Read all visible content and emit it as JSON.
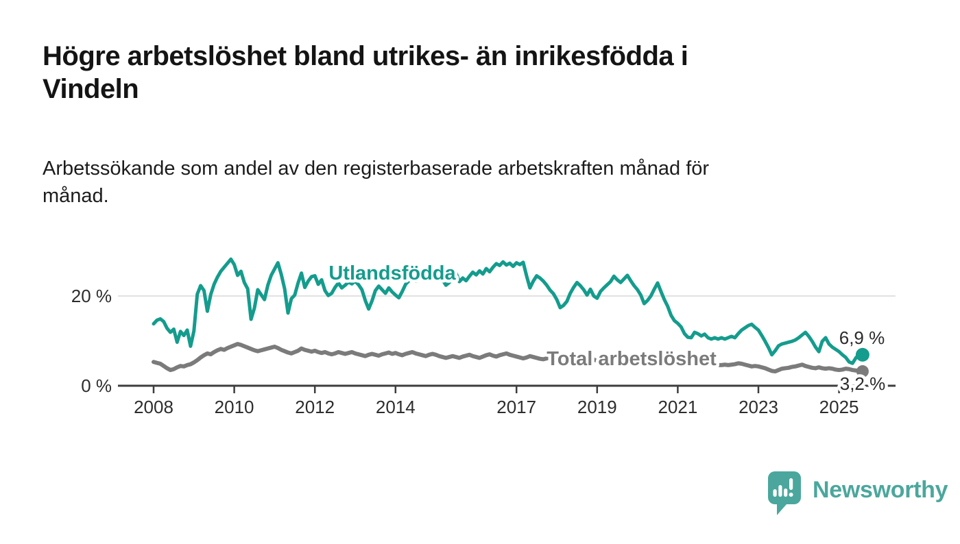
{
  "header": {
    "title": "Högre arbetslöshet bland utrikes- än inrikesfödda i\nVindeln",
    "subtitle": "Arbetssökande som andel av den registerbaserade arbetskraften månad för\nmånad."
  },
  "chart_data": {
    "type": "line",
    "unit": "%",
    "frequency": "monthly",
    "start": "2008-01",
    "end": "2025-08",
    "grid": "single-horizontal-gridline-at-20",
    "y_axis": {
      "min": 0,
      "gridline_value": 20
    },
    "y_ticks": [
      {
        "value": 0,
        "label": "0 %"
      },
      {
        "value": 20,
        "label": "20 %"
      }
    ],
    "x_ticks": [
      {
        "year": 2008,
        "label": "2008"
      },
      {
        "year": 2010,
        "label": "2010"
      },
      {
        "year": 2012,
        "label": "2012"
      },
      {
        "year": 2014,
        "label": "2014"
      },
      {
        "year": 2017,
        "label": "2017"
      },
      {
        "year": 2019,
        "label": "2019"
      },
      {
        "year": 2021,
        "label": "2021"
      },
      {
        "year": 2023,
        "label": "2023"
      },
      {
        "year": 2025,
        "label": "2025"
      }
    ],
    "series": [
      {
        "name": "utlandsfodda",
        "label": "Utlandsfödda",
        "color": "#149C8D",
        "end_label": "6,9 %",
        "last_value": 6.9,
        "values": [
          13.8,
          14.6,
          14.9,
          14.3,
          12.8,
          11.9,
          12.6,
          9.7,
          12.1,
          11.2,
          12.4,
          8.8,
          12.2,
          20.4,
          22.3,
          21.2,
          16.6,
          20.3,
          22.6,
          24.2,
          25.5,
          26.4,
          27.3,
          28.2,
          27.0,
          24.6,
          25.5,
          23.0,
          21.6,
          14.8,
          17.3,
          21.4,
          20.3,
          19.2,
          22.4,
          24.6,
          26.0,
          27.4,
          24.8,
          21.6,
          16.2,
          19.4,
          20.2,
          22.9,
          25.1,
          21.9,
          23.3,
          24.3,
          24.5,
          22.6,
          23.6,
          21.2,
          20.1,
          20.6,
          21.9,
          22.9,
          21.8,
          22.4,
          23.1,
          22.7,
          23.3,
          22.5,
          21.4,
          19.0,
          17.1,
          18.9,
          21.2,
          22.2,
          21.4,
          20.6,
          21.8,
          20.9,
          20.2,
          19.6,
          21.0,
          22.6,
          23.4,
          24.1,
          23.3,
          24.2,
          25.0,
          24.3,
          25.2,
          24.6,
          25.5,
          24.8,
          23.6,
          22.4,
          23.0,
          24.7,
          25.1,
          23.2,
          24.0,
          23.4,
          24.4,
          25.3,
          24.7,
          25.6,
          24.9,
          26.1,
          25.4,
          26.4,
          27.2,
          26.8,
          27.6,
          26.9,
          27.3,
          26.6,
          27.4,
          27.0,
          27.5,
          24.5,
          21.8,
          23.3,
          24.5,
          24.0,
          23.3,
          22.4,
          21.3,
          20.5,
          19.2,
          17.4,
          17.9,
          18.8,
          20.6,
          21.9,
          23.0,
          22.3,
          21.4,
          20.2,
          21.5,
          20.0,
          19.5,
          21.0,
          21.8,
          22.5,
          23.2,
          24.4,
          23.6,
          23.0,
          23.8,
          24.6,
          23.4,
          22.3,
          21.4,
          20.2,
          18.3,
          19.0,
          20.0,
          21.5,
          22.9,
          21.0,
          19.2,
          17.7,
          15.7,
          14.5,
          13.9,
          13.1,
          11.6,
          10.8,
          10.7,
          11.9,
          11.6,
          11.1,
          11.5,
          10.7,
          10.4,
          10.7,
          10.4,
          10.7,
          10.4,
          10.7,
          11.0,
          10.7,
          11.6,
          12.4,
          12.9,
          13.4,
          13.7,
          13.0,
          12.4,
          11.2,
          9.9,
          8.5,
          6.9,
          7.8,
          8.9,
          9.3,
          9.5,
          9.7,
          9.9,
          10.2,
          10.7,
          11.3,
          11.9,
          11.0,
          9.9,
          8.6,
          7.6,
          9.9,
          10.7,
          9.3,
          8.6,
          8.1,
          7.6,
          6.9,
          6.3,
          5.3,
          5.0,
          6.2,
          7.0,
          6.9
        ]
      },
      {
        "name": "total",
        "label": "Total arbetslöshet",
        "color": "#7B7B7B",
        "end_label": "3,2 %",
        "last_value": 3.2,
        "values": [
          5.3,
          5.1,
          4.9,
          4.4,
          3.9,
          3.5,
          3.7,
          4.1,
          4.4,
          4.3,
          4.6,
          4.8,
          5.2,
          5.7,
          6.3,
          6.8,
          7.2,
          7.0,
          7.5,
          7.9,
          8.2,
          8.0,
          8.4,
          8.7,
          9.0,
          9.3,
          9.1,
          8.8,
          8.5,
          8.2,
          7.9,
          7.7,
          7.9,
          8.1,
          8.3,
          8.5,
          8.7,
          8.4,
          8.0,
          7.7,
          7.4,
          7.2,
          7.5,
          7.8,
          8.3,
          8.0,
          7.8,
          7.6,
          7.8,
          7.5,
          7.3,
          7.5,
          7.2,
          7.0,
          7.2,
          7.5,
          7.3,
          7.1,
          7.3,
          7.5,
          7.2,
          7.0,
          6.8,
          6.6,
          6.9,
          7.1,
          6.9,
          6.7,
          7.0,
          7.2,
          7.4,
          7.1,
          7.3,
          7.0,
          6.8,
          7.1,
          7.3,
          7.5,
          7.2,
          7.0,
          6.8,
          6.6,
          6.9,
          7.1,
          6.9,
          6.6,
          6.4,
          6.2,
          6.4,
          6.6,
          6.4,
          6.2,
          6.5,
          6.7,
          6.9,
          6.6,
          6.4,
          6.2,
          6.5,
          6.8,
          7.0,
          6.7,
          6.5,
          6.8,
          7.0,
          7.2,
          6.9,
          6.7,
          6.5,
          6.3,
          6.1,
          6.3,
          6.6,
          6.4,
          6.2,
          6.0,
          5.9,
          6.1,
          6.3,
          6.0,
          5.8,
          5.6,
          5.5,
          5.7,
          5.9,
          6.1,
          5.9,
          5.7,
          5.5,
          5.4,
          5.6,
          5.8,
          5.6,
          5.4,
          5.3,
          5.5,
          5.7,
          5.9,
          5.7,
          5.5,
          5.8,
          6.0,
          5.8,
          5.6,
          5.9,
          6.2,
          6.5,
          6.8,
          7.0,
          6.8,
          6.6,
          6.4,
          6.2,
          6.0,
          5.8,
          5.6,
          5.4,
          5.2,
          5.0,
          4.9,
          5.1,
          5.3,
          5.1,
          4.9,
          4.7,
          4.6,
          4.8,
          4.7,
          4.6,
          4.6,
          4.7,
          4.6,
          4.7,
          4.8,
          5.0,
          4.9,
          4.7,
          4.5,
          4.3,
          4.4,
          4.3,
          4.1,
          3.9,
          3.6,
          3.3,
          3.2,
          3.5,
          3.8,
          3.9,
          4.0,
          4.2,
          4.3,
          4.5,
          4.7,
          4.4,
          4.2,
          4.0,
          3.9,
          4.1,
          3.9,
          3.8,
          3.9,
          3.8,
          3.6,
          3.5,
          3.6,
          3.8,
          3.7,
          3.5,
          3.4,
          3.3,
          3.2
        ]
      }
    ],
    "colors": {
      "axis": "#3D3D3D",
      "gridline": "#E2E2E2",
      "tick_label": "#2D2D2D",
      "value_label": "#2B2B2B"
    }
  },
  "footer": {
    "brand": "Newsworthy",
    "brand_color": "#4BA79D"
  }
}
